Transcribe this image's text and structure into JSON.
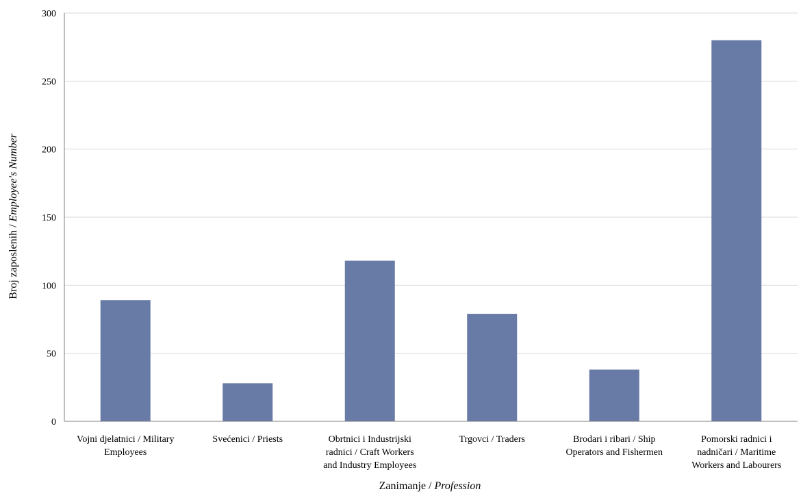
{
  "chart_data": {
    "type": "bar",
    "title": "",
    "xlabel": {
      "plain": "Zanimanje / ",
      "italic": "Profession"
    },
    "ylabel": {
      "plain": "Broj zaposlenih / ",
      "italic": "Employee's Number"
    },
    "ylim": [
      0,
      300
    ],
    "yticks": [
      0,
      50,
      100,
      150,
      200,
      250,
      300
    ],
    "grid": true,
    "legend": "none",
    "bar_color": "#687aa6",
    "categories": [
      [
        "Vojni djelatnici / Military",
        "Employees"
      ],
      [
        "Svećenici / Priests"
      ],
      [
        "Obrtnici i Industrijski",
        "radnici / Craft Workers",
        "and Industry Employees"
      ],
      [
        "Trgovci / Traders"
      ],
      [
        "Brodari i ribari / Ship",
        "Operators and Fishermen"
      ],
      [
        "Pomorski radnici i",
        "nadničari / Maritime",
        "Workers and Labourers"
      ]
    ],
    "values": [
      89,
      28,
      118,
      79,
      38,
      280
    ]
  }
}
